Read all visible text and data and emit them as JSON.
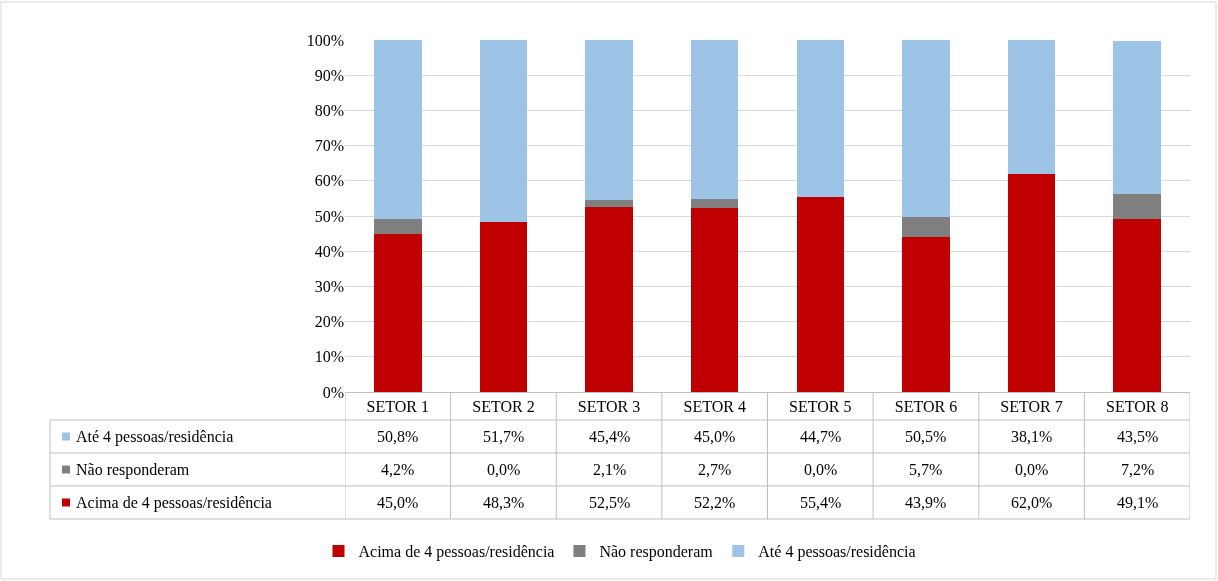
{
  "chart_data": {
    "type": "bar",
    "stacked": true,
    "categories": [
      "SETOR 1",
      "SETOR 2",
      "SETOR 3",
      "SETOR 4",
      "SETOR 5",
      "SETOR 6",
      "SETOR 7",
      "SETOR 8"
    ],
    "series": [
      {
        "name": "Acima de 4 pessoas/residência",
        "color": "#c00000",
        "values": [
          45.0,
          48.3,
          52.5,
          52.2,
          55.4,
          43.9,
          62.0,
          49.1
        ],
        "value_labels": [
          "45,0%",
          "48,3%",
          "52,5%",
          "52,2%",
          "55,4%",
          "43,9%",
          "62,0%",
          "49,1%"
        ]
      },
      {
        "name": "Não responderam",
        "color": "#7f7f7f",
        "values": [
          4.2,
          0.0,
          2.1,
          2.7,
          0.0,
          5.7,
          0.0,
          7.2
        ],
        "value_labels": [
          "4,2%",
          "0,0%",
          "2,1%",
          "2,7%",
          "0,0%",
          "5,7%",
          "0,0%",
          "7,2%"
        ]
      },
      {
        "name": "Até 4 pessoas/residência",
        "color": "#9dc3e6",
        "values": [
          50.8,
          51.7,
          45.4,
          45.0,
          44.7,
          50.5,
          38.1,
          43.5
        ],
        "value_labels": [
          "50,8%",
          "51,7%",
          "45,4%",
          "45,0%",
          "44,7%",
          "50,5%",
          "38,1%",
          "43,5%"
        ]
      }
    ],
    "ylim": [
      0,
      100
    ],
    "yticks": [
      {
        "value": 0,
        "label": "0%"
      },
      {
        "value": 10,
        "label": "10%"
      },
      {
        "value": 20,
        "label": "20%"
      },
      {
        "value": 30,
        "label": "30%"
      },
      {
        "value": 40,
        "label": "40%"
      },
      {
        "value": 50,
        "label": "50%"
      },
      {
        "value": 60,
        "label": "60%"
      },
      {
        "value": 70,
        "label": "70%"
      },
      {
        "value": 80,
        "label": "80%"
      },
      {
        "value": 90,
        "label": "90%"
      },
      {
        "value": 100,
        "label": "100%"
      }
    ],
    "grid": "y",
    "legend": "bottom"
  }
}
